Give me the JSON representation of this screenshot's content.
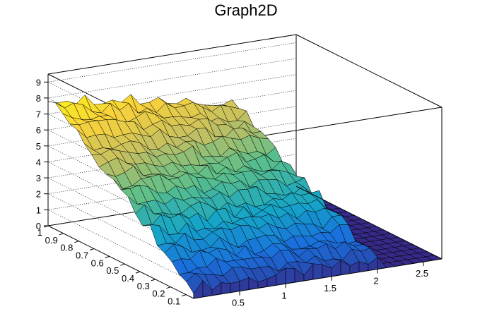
{
  "chart_data": {
    "type": "surface",
    "title": "Graph2D",
    "palette": [
      "#352a87",
      "#1a6fdd",
      "#15a5c7",
      "#5bbf8a",
      "#c3bf63",
      "#f9d23b",
      "#f9fb0e"
    ],
    "x_axis": {
      "range": [
        0.0,
        2.7
      ],
      "ticks": [
        0.5,
        1.0,
        1.5,
        2.0,
        2.5
      ],
      "tick_labels": [
        "0.5",
        "1",
        "1.5",
        "2",
        "2.5"
      ]
    },
    "y_axis": {
      "range": [
        0.05,
        1.0
      ],
      "ticks": [
        0.1,
        0.2,
        0.3,
        0.4,
        0.5,
        0.6,
        0.7,
        0.8,
        0.9,
        1.0
      ],
      "tick_labels": [
        "0.1",
        "0.2",
        "0.3",
        "0.4",
        "0.5",
        "0.6",
        "0.7",
        "0.8",
        "0.9",
        "1"
      ]
    },
    "z_axis": {
      "range": [
        0,
        9.5
      ],
      "ticks": [
        0,
        1,
        2,
        3,
        4,
        5,
        6,
        7,
        8,
        9
      ],
      "tick_labels": [
        "0",
        "1",
        "2",
        "3",
        "4",
        "5",
        "6",
        "7",
        "8",
        "9"
      ]
    },
    "grid": true,
    "surface": {
      "description_values": "z as function of (x,y); plateau for x<2.0, zero for x>=2.1",
      "z_at_x0": {
        "y_low": 0.7,
        "y_high": 8.0
      },
      "cut_x": 2.0,
      "z_beyond_cut": 0.0
    }
  }
}
